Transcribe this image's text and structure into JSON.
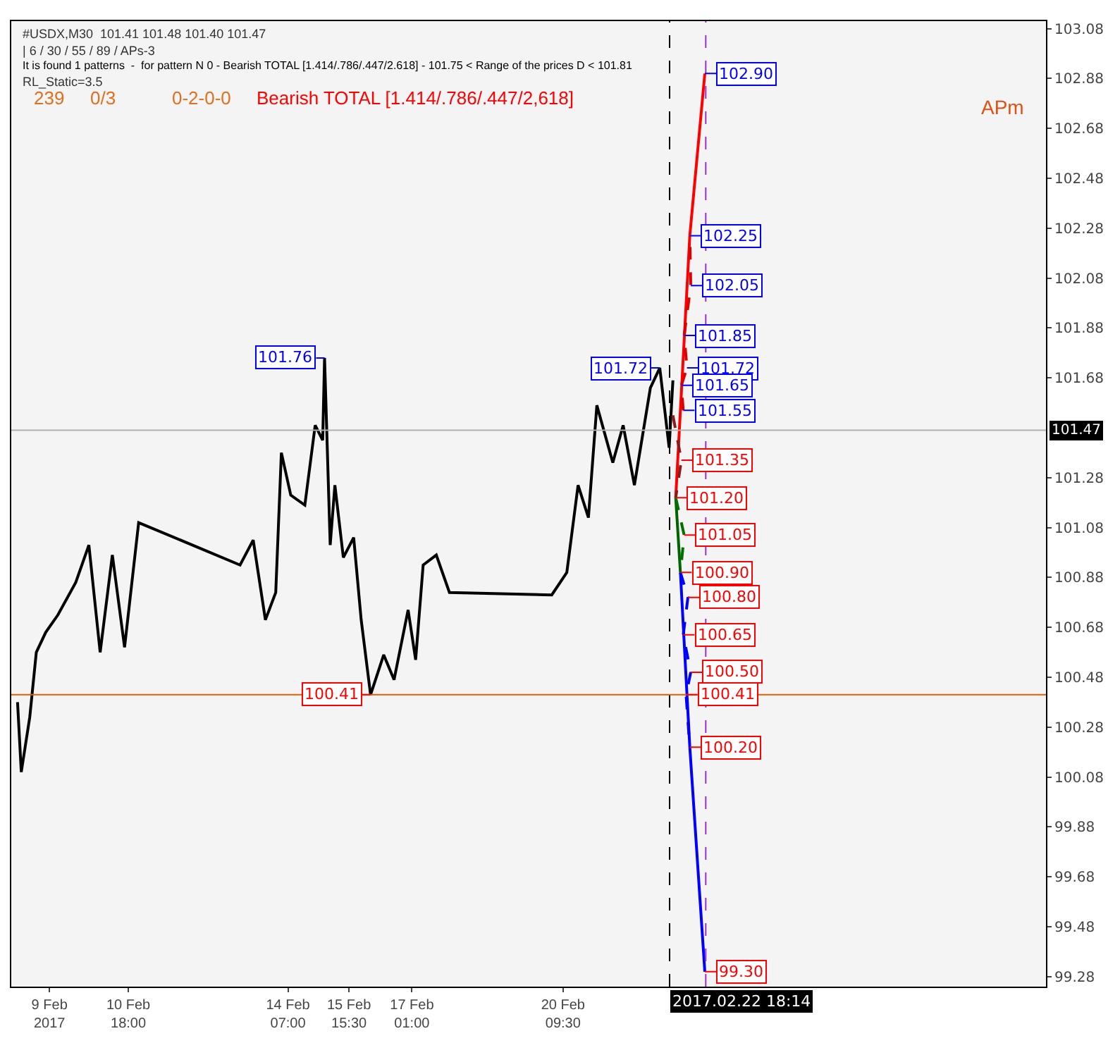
{
  "chart_data": {
    "type": "line",
    "annotations": [
      "#USDX,M30  101.41 101.48 101.40 101.47",
      "| 6 / 30 / 55 / 89 / APs-3",
      "It is found 1 patterns  -  for pattern N 0 - Bearish TOTAL [1.414/.786/.447/2.618] - 101.75 < Range of the prices D < 101.81",
      "RL_Static=3.5",
      "239",
      "0/3",
      "0-2-0-0",
      "Bearish TOTAL [1.414/.786/.447/2,618]",
      "APm",
      {
        "text": "101.76",
        "x": "2017-02-15T02:30",
        "y": 101.76
      },
      {
        "text": "101.72",
        "x": "2017-02-22T13:00",
        "y": 101.72
      },
      {
        "text": "100.41",
        "x": "2017-02-16T03:00",
        "y": 100.41
      },
      {
        "text": "102.90",
        "x": "2017-02-23T13:00",
        "y": 102.9
      },
      {
        "text": "102.25",
        "x": "2017-02-23T05:00",
        "y": 102.25
      },
      {
        "text": "102.05",
        "x": "2017-02-23T05:30",
        "y": 102.05
      },
      {
        "text": "101.85",
        "x": "2017-02-23T02:00",
        "y": 101.85
      },
      {
        "text": "101.72",
        "x": "2017-02-23T03:30",
        "y": 101.72
      },
      {
        "text": "101.65",
        "x": "2017-02-23T00:30",
        "y": 101.65
      },
      {
        "text": "101.55",
        "x": "2017-02-23T01:30",
        "y": 101.55
      },
      {
        "text": "101.35",
        "x": "2017-02-23T00:30",
        "y": 101.35
      },
      {
        "text": "101.20",
        "x": "2017-02-22T21:30",
        "y": 101.2
      },
      {
        "text": "101.05",
        "x": "2017-02-23T02:00",
        "y": 101.05
      },
      {
        "text": "100.90",
        "x": "2017-02-23T00:00",
        "y": 100.9
      },
      {
        "text": "100.80",
        "x": "2017-02-23T04:00",
        "y": 100.8
      },
      {
        "text": "100.65",
        "x": "2017-02-23T01:30",
        "y": 100.65
      },
      {
        "text": "100.50",
        "x": "2017-02-23T05:30",
        "y": 100.5
      },
      {
        "text": "100.41",
        "x": "2017-02-23T03:00",
        "y": 100.41
      },
      {
        "text": "100.20",
        "x": "2017-02-23T05:00",
        "y": 100.2
      },
      {
        "text": "99.30",
        "x": "2017-02-23T13:00",
        "y": 99.3
      }
    ],
    "xlim": [
      "2017-02-08T03:40",
      "2017-03-03T02:40"
    ],
    "xticks": [
      {
        "value": "2017-02-09",
        "label": "9 Feb 2017"
      },
      {
        "value": "2017-02-10T18:00",
        "label": "10 Feb 18:00"
      },
      {
        "value": "2017-02-14T07:00",
        "label": "14 Feb 07:00"
      },
      {
        "value": "2017-02-15T15:30",
        "label": "15 Feb 15:30"
      },
      {
        "value": "2017-02-17T01:00",
        "label": "17 Feb 01:00"
      },
      {
        "value": "2017-02-20T09:30",
        "label": "20 Feb 09:30"
      }
    ],
    "ylim": [
      99.24,
      103.11
    ],
    "yticks": [
      99.28,
      99.48,
      99.68,
      99.88,
      100.08,
      100.28,
      100.48,
      100.68,
      100.88,
      101.08,
      101.28,
      101.68,
      101.88,
      102.08,
      102.28,
      102.48,
      102.68,
      102.88,
      103.08
    ],
    "grid": false,
    "marker": "none",
    "series": [
      {
        "color": "#000000",
        "line_style": "solid",
        "x": [
          "2017-02-08T07:00",
          "2017-02-08T09:00",
          "2017-02-08T13:30",
          "2017-02-08T17:00",
          "2017-02-08T22:00",
          "2017-02-09T04:30",
          "2017-02-09T14:00",
          "2017-02-09T21:00",
          "2017-02-10T03:00",
          "2017-02-10T09:30",
          "2017-02-10T16:00",
          "2017-02-10T23:30",
          "2017-02-13T05:30",
          "2017-02-13T12:30",
          "2017-02-13T19:00",
          "2017-02-14T00:30",
          "2017-02-14T03:30",
          "2017-02-14T08:30",
          "2017-02-14T16:00",
          "2017-02-14T21:30",
          "2017-02-15T01:30",
          "2017-02-15T02:30",
          "2017-02-15T05:30",
          "2017-02-15T08:00",
          "2017-02-15T12:30",
          "2017-02-15T18:00",
          "2017-02-15T22:00",
          "2017-02-16T03:00",
          "2017-02-16T10:00",
          "2017-02-16T15:30",
          "2017-02-16T23:00",
          "2017-02-17T03:00",
          "2017-02-17T07:00",
          "2017-02-17T14:00",
          "2017-02-17T21:00",
          "2017-02-20T03:30",
          "2017-02-20T11:30",
          "2017-02-20T17:30",
          "2017-02-20T23:00",
          "2017-02-21T03:30",
          "2017-02-21T12:00",
          "2017-02-21T17:30",
          "2017-02-21T23:30",
          "2017-02-22T08:00",
          "2017-02-22T13:00",
          "2017-02-22T18:00",
          "2017-02-22T20:00"
        ],
        "values": [
          100.38,
          100.1,
          100.32,
          100.58,
          100.66,
          100.73,
          100.86,
          101.01,
          100.58,
          100.97,
          100.6,
          101.1,
          100.93,
          101.03,
          100.71,
          100.82,
          101.38,
          101.21,
          101.17,
          101.49,
          101.43,
          101.76,
          101.01,
          101.25,
          100.96,
          101.04,
          100.71,
          100.41,
          100.57,
          100.47,
          100.75,
          100.55,
          100.93,
          100.97,
          100.82,
          100.81,
          100.9,
          101.25,
          101.12,
          101.57,
          101.34,
          101.49,
          101.25,
          101.64,
          101.72,
          101.4,
          101.67
        ]
      },
      {
        "color": "#ff0000",
        "line_style": "solid",
        "x": [
          "2017-02-22T21:30",
          "2017-02-23T05:00",
          "2017-02-23T13:00"
        ],
        "values": [
          101.2,
          102.25,
          102.9
        ]
      },
      {
        "color": "#dd0000",
        "line_style": "dashed",
        "x": [
          "2017-02-23T01:30",
          "2017-02-23T00:30",
          "2017-02-23T03:30",
          "2017-02-23T02:00",
          "2017-02-23T05:30",
          "2017-02-23T05:00"
        ],
        "values": [
          101.55,
          101.65,
          101.72,
          101.85,
          102.05,
          102.25
        ]
      },
      {
        "color": "#8b1a1a",
        "line_style": "dashed",
        "x": [
          "2017-02-22T20:00",
          "2017-02-23T00:30",
          "2017-02-22T21:30"
        ],
        "values": [
          101.53,
          101.35,
          101.2
        ]
      },
      {
        "color": "#006400",
        "line_style": "solid",
        "x": [
          "2017-02-22T21:30",
          "2017-02-23T00:00"
        ],
        "values": [
          101.2,
          100.9
        ]
      },
      {
        "color": "#007000",
        "line_style": "dashed",
        "x": [
          "2017-02-22T21:30",
          "2017-02-23T02:00",
          "2017-02-23T00:00"
        ],
        "values": [
          101.2,
          101.05,
          100.9
        ]
      },
      {
        "color": "#0000ff",
        "line_style": "solid",
        "x": [
          "2017-02-23T00:00",
          "2017-02-23T05:00",
          "2017-02-23T13:00"
        ],
        "values": [
          100.9,
          100.2,
          99.3
        ]
      },
      {
        "color": "#0000ff",
        "line_style": "dashed",
        "x": [
          "2017-02-23T00:00",
          "2017-02-23T04:00",
          "2017-02-23T01:30",
          "2017-02-23T05:30",
          "2017-02-23T03:00",
          "2017-02-23T05:00"
        ],
        "values": [
          100.9,
          100.8,
          100.65,
          100.5,
          100.41,
          100.2
        ]
      }
    ],
    "ref_lines": [
      {
        "axis": "y",
        "value": 101.47,
        "label": "101.47",
        "color": "#b0b0b0"
      },
      {
        "axis": "x",
        "value": "2017-02-22T18:14",
        "label": "2017.02.22 18:14",
        "color": "#000000",
        "line_style": "dashed"
      },
      {
        "axis": "x",
        "value": "2017-02-23T13:30",
        "color": "#9932cc",
        "line_style": "dashed"
      },
      {
        "axis": "y",
        "value": 100.41,
        "color": "#e06000",
        "line_style": "solid"
      }
    ]
  }
}
